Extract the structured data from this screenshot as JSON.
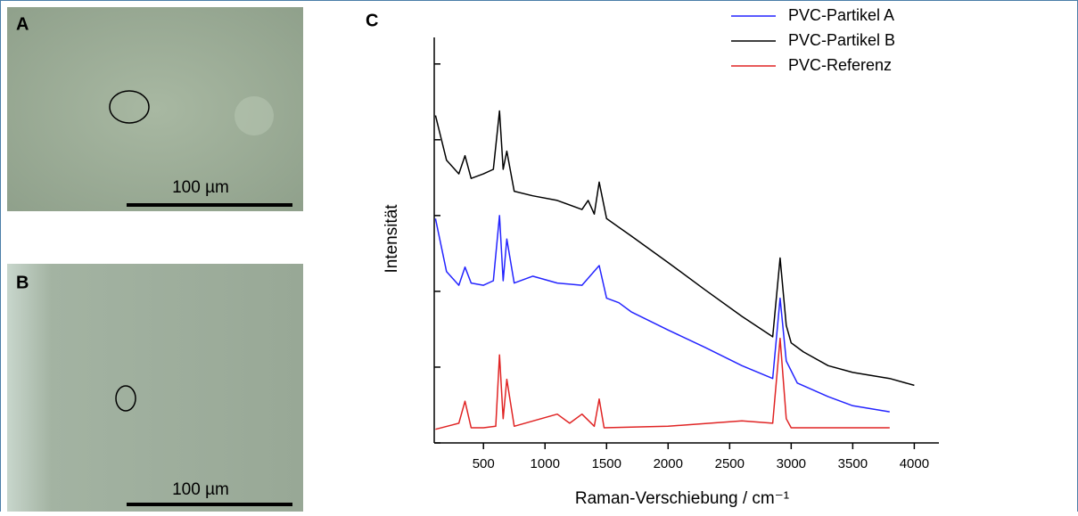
{
  "panels": [
    {
      "label": "A",
      "scale_bar": "100 µm"
    },
    {
      "label": "B",
      "scale_bar": "100 µm"
    }
  ],
  "chart_data": {
    "type": "line",
    "panel_label": "C",
    "x_label": "Raman-Verschiebung / cm⁻¹",
    "y_label": "Intensität",
    "xlim": [
      100,
      4200
    ],
    "xticks": [
      500,
      1000,
      1500,
      2000,
      2500,
      3000,
      3500,
      4000
    ],
    "ylim": [
      0,
      5.35
    ],
    "yticks": [
      0,
      1,
      2,
      3,
      4,
      5
    ],
    "legend": "top-right",
    "series": [
      {
        "name": "PVC-Partikel A",
        "color": "#2424ff",
        "x": [
          110,
          200,
          300,
          350,
          400,
          500,
          580,
          630,
          660,
          690,
          750,
          900,
          1100,
          1300,
          1440,
          1500,
          1600,
          1700,
          2000,
          2300,
          2600,
          2850,
          2910,
          2960,
          3050,
          3300,
          3500,
          3800
        ],
        "values": [
          2.96,
          2.26,
          2.08,
          2.32,
          2.11,
          2.08,
          2.14,
          3.0,
          2.14,
          2.69,
          2.11,
          2.2,
          2.11,
          2.08,
          2.34,
          1.91,
          1.85,
          1.73,
          1.49,
          1.26,
          1.02,
          0.85,
          1.91,
          1.08,
          0.79,
          0.61,
          0.49,
          0.41
        ]
      },
      {
        "name": "PVC-Partikel B",
        "color": "#000000",
        "x": [
          110,
          200,
          300,
          350,
          400,
          500,
          580,
          630,
          660,
          690,
          750,
          900,
          1100,
          1300,
          1350,
          1400,
          1440,
          1500,
          1700,
          2000,
          2300,
          2600,
          2850,
          2910,
          2960,
          3000,
          3100,
          3300,
          3500,
          3800,
          4000
        ],
        "values": [
          4.32,
          3.73,
          3.55,
          3.79,
          3.49,
          3.55,
          3.61,
          4.38,
          3.61,
          3.85,
          3.32,
          3.26,
          3.2,
          3.08,
          3.2,
          3.02,
          3.44,
          2.96,
          2.73,
          2.38,
          2.02,
          1.67,
          1.4,
          2.44,
          1.55,
          1.32,
          1.2,
          1.02,
          0.93,
          0.85,
          0.76
        ]
      },
      {
        "name": "PVC-Referenz",
        "color": "#e02424",
        "x": [
          110,
          300,
          350,
          400,
          500,
          600,
          630,
          660,
          690,
          750,
          1100,
          1200,
          1300,
          1400,
          1440,
          1480,
          2000,
          2600,
          2850,
          2910,
          2960,
          3000,
          3800
        ],
        "values": [
          0.18,
          0.26,
          0.55,
          0.2,
          0.2,
          0.22,
          1.16,
          0.32,
          0.84,
          0.22,
          0.38,
          0.26,
          0.38,
          0.22,
          0.58,
          0.2,
          0.22,
          0.29,
          0.26,
          1.38,
          0.32,
          0.2,
          0.2
        ]
      }
    ]
  }
}
